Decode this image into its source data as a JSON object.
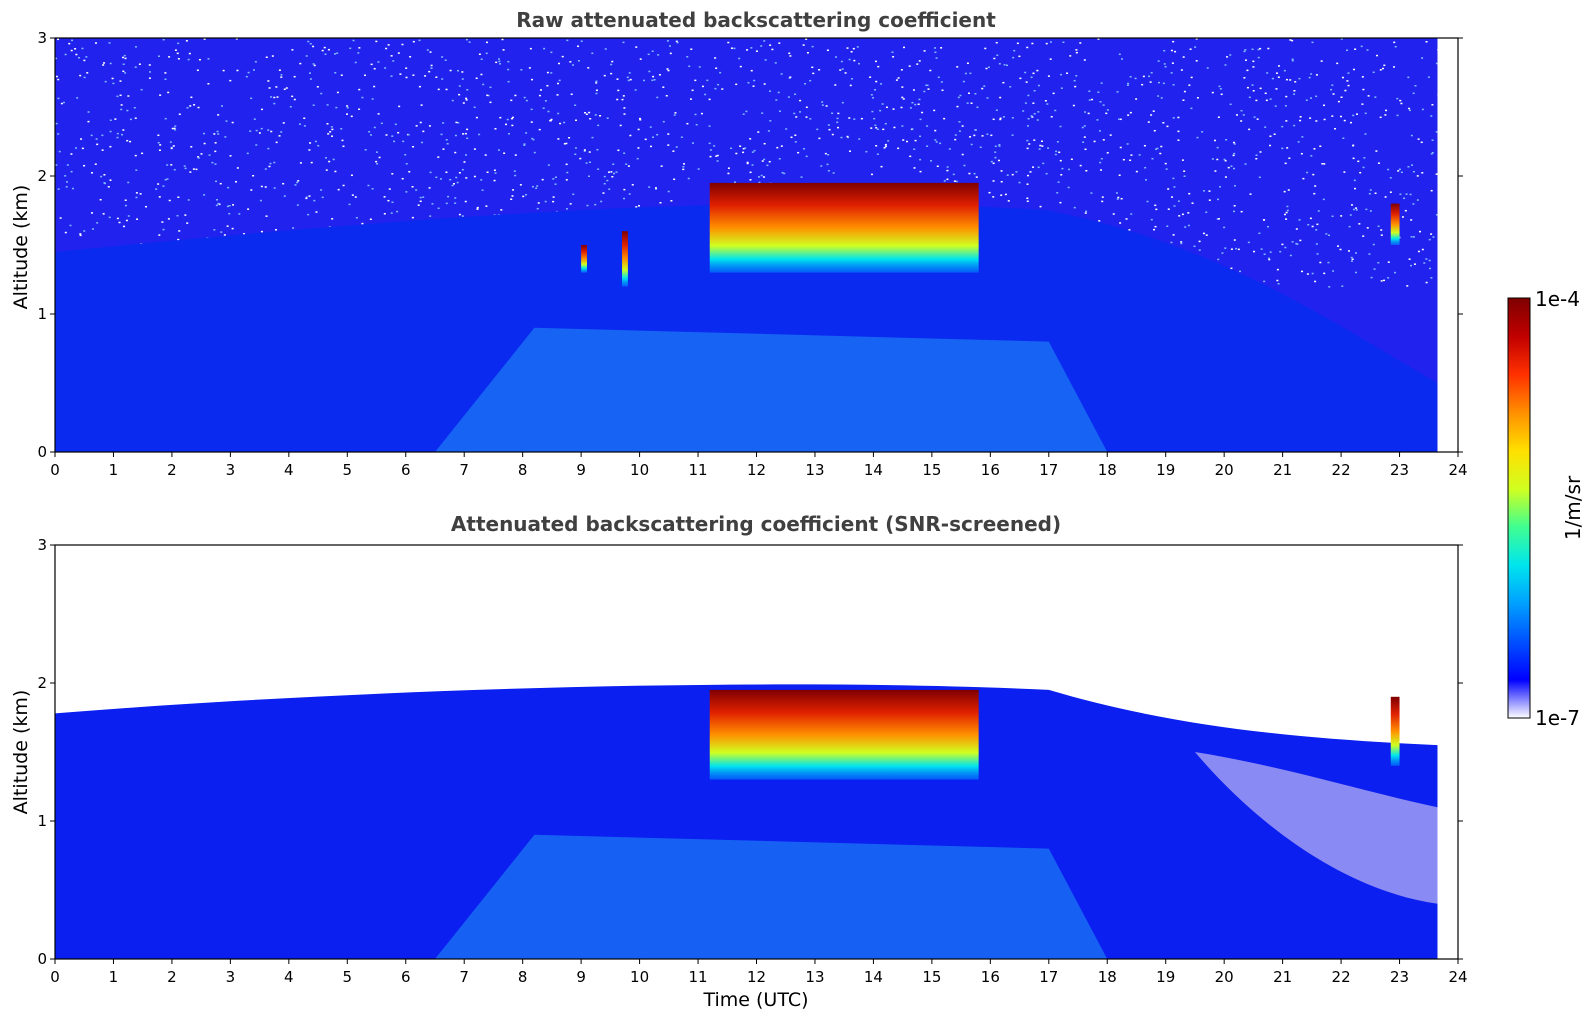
{
  "colors": {
    "background": "#ffffff",
    "title": "#404040",
    "colormap": [
      "#ffffff",
      "#0000ff",
      "#0050ff",
      "#00a0ff",
      "#00e5ee",
      "#40ff90",
      "#d0ff20",
      "#ffe000",
      "#ff9000",
      "#ff3000",
      "#c00000",
      "#7f0000"
    ]
  },
  "chart_data": [
    {
      "type": "heatmap",
      "title": "Raw attenuated backscattering coefficient",
      "xlabel": "",
      "ylabel": "Altitude (km)",
      "xlim": [
        0,
        24
      ],
      "ylim": [
        0,
        3
      ],
      "xticks": [
        "0",
        "1",
        "2",
        "3",
        "4",
        "5",
        "6",
        "7",
        "8",
        "9",
        "10",
        "11",
        "12",
        "13",
        "14",
        "15",
        "16",
        "17",
        "18",
        "19",
        "20",
        "21",
        "22",
        "23",
        "24"
      ],
      "yticks": [
        "0",
        "1",
        "2",
        "3"
      ],
      "data_end_time": 23.65,
      "colorscale": "log",
      "features": [
        {
          "kind": "cloud",
          "t_start": 11.2,
          "t_end": 15.8,
          "alt_base": 1.3,
          "alt_top": 1.95,
          "peak_value": "1e-4"
        },
        {
          "kind": "cloud",
          "t_start": 9.0,
          "t_end": 9.1,
          "alt_base": 1.3,
          "alt_top": 1.5
        },
        {
          "kind": "cloud",
          "t_start": 9.7,
          "t_end": 9.8,
          "alt_base": 1.2,
          "alt_top": 1.6
        },
        {
          "kind": "cloud",
          "t_start": 22.85,
          "t_end": 23.0,
          "alt_base": 1.5,
          "alt_top": 1.8
        }
      ]
    },
    {
      "type": "heatmap",
      "title": "Attenuated backscattering coefficient (SNR-screened)",
      "xlabel": "Time (UTC)",
      "ylabel": "Altitude (km)",
      "xlim": [
        0,
        24
      ],
      "ylim": [
        0,
        3
      ],
      "xticks": [
        "0",
        "1",
        "2",
        "3",
        "4",
        "5",
        "6",
        "7",
        "8",
        "9",
        "10",
        "11",
        "12",
        "13",
        "14",
        "15",
        "16",
        "17",
        "18",
        "19",
        "20",
        "21",
        "22",
        "23",
        "24"
      ],
      "yticks": [
        "0",
        "1",
        "2",
        "3"
      ],
      "data_end_time": 23.65,
      "colorscale": "log",
      "features": [
        {
          "kind": "cloud",
          "t_start": 11.2,
          "t_end": 15.8,
          "alt_base": 1.3,
          "alt_top": 1.95,
          "peak_value": "1e-4"
        },
        {
          "kind": "cloud",
          "t_start": 22.85,
          "t_end": 23.0,
          "alt_base": 1.4,
          "alt_top": 1.9
        }
      ]
    }
  ],
  "colorbar": {
    "label": "1/m/sr",
    "min_label": "1e-7",
    "max_label": "1e-4",
    "min": 1e-07,
    "max": 0.0001
  }
}
